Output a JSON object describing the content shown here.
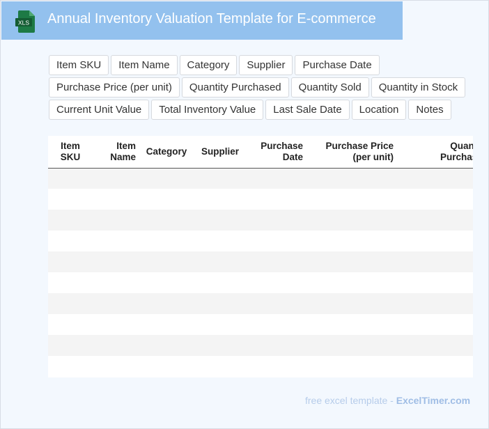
{
  "header": {
    "icon_label": "XLS",
    "title": "Annual Inventory Valuation Template for E-commerce"
  },
  "colors": {
    "header_bg": "#93c1ee",
    "page_bg": "#f3f8fe",
    "icon_green": "#1d7a45"
  },
  "tags": [
    [
      "Item SKU",
      "Item Name",
      "Category",
      "Supplier",
      "Purchase Date"
    ],
    [
      "Purchase Price (per unit)",
      "Quantity Purchased",
      "Quantity Sold",
      "Quantity in Stock"
    ],
    [
      "Current Unit Value",
      "Total Inventory Value",
      "Last Sale Date",
      "Location",
      "Notes"
    ]
  ],
  "table": {
    "columns": [
      "Item\nSKU",
      "Item\nName",
      "Category",
      "Supplier",
      "Purchase\nDate",
      "Purchase Price\n(per unit)",
      "Quantity\nPurchased"
    ],
    "rows": [
      [
        "",
        "",
        "",
        "",
        "",
        "",
        ""
      ],
      [
        "",
        "",
        "",
        "",
        "",
        "",
        ""
      ],
      [
        "",
        "",
        "",
        "",
        "",
        "",
        ""
      ],
      [
        "",
        "",
        "",
        "",
        "",
        "",
        ""
      ],
      [
        "",
        "",
        "",
        "",
        "",
        "",
        ""
      ],
      [
        "",
        "",
        "",
        "",
        "",
        "",
        ""
      ],
      [
        "",
        "",
        "",
        "",
        "",
        "",
        ""
      ],
      [
        "",
        "",
        "",
        "",
        "",
        "",
        ""
      ],
      [
        "",
        "",
        "",
        "",
        "",
        "",
        ""
      ],
      [
        "",
        "",
        "",
        "",
        "",
        "",
        ""
      ]
    ]
  },
  "footer": {
    "prefix": "free excel template - ",
    "brand": "ExcelTimer.com"
  }
}
